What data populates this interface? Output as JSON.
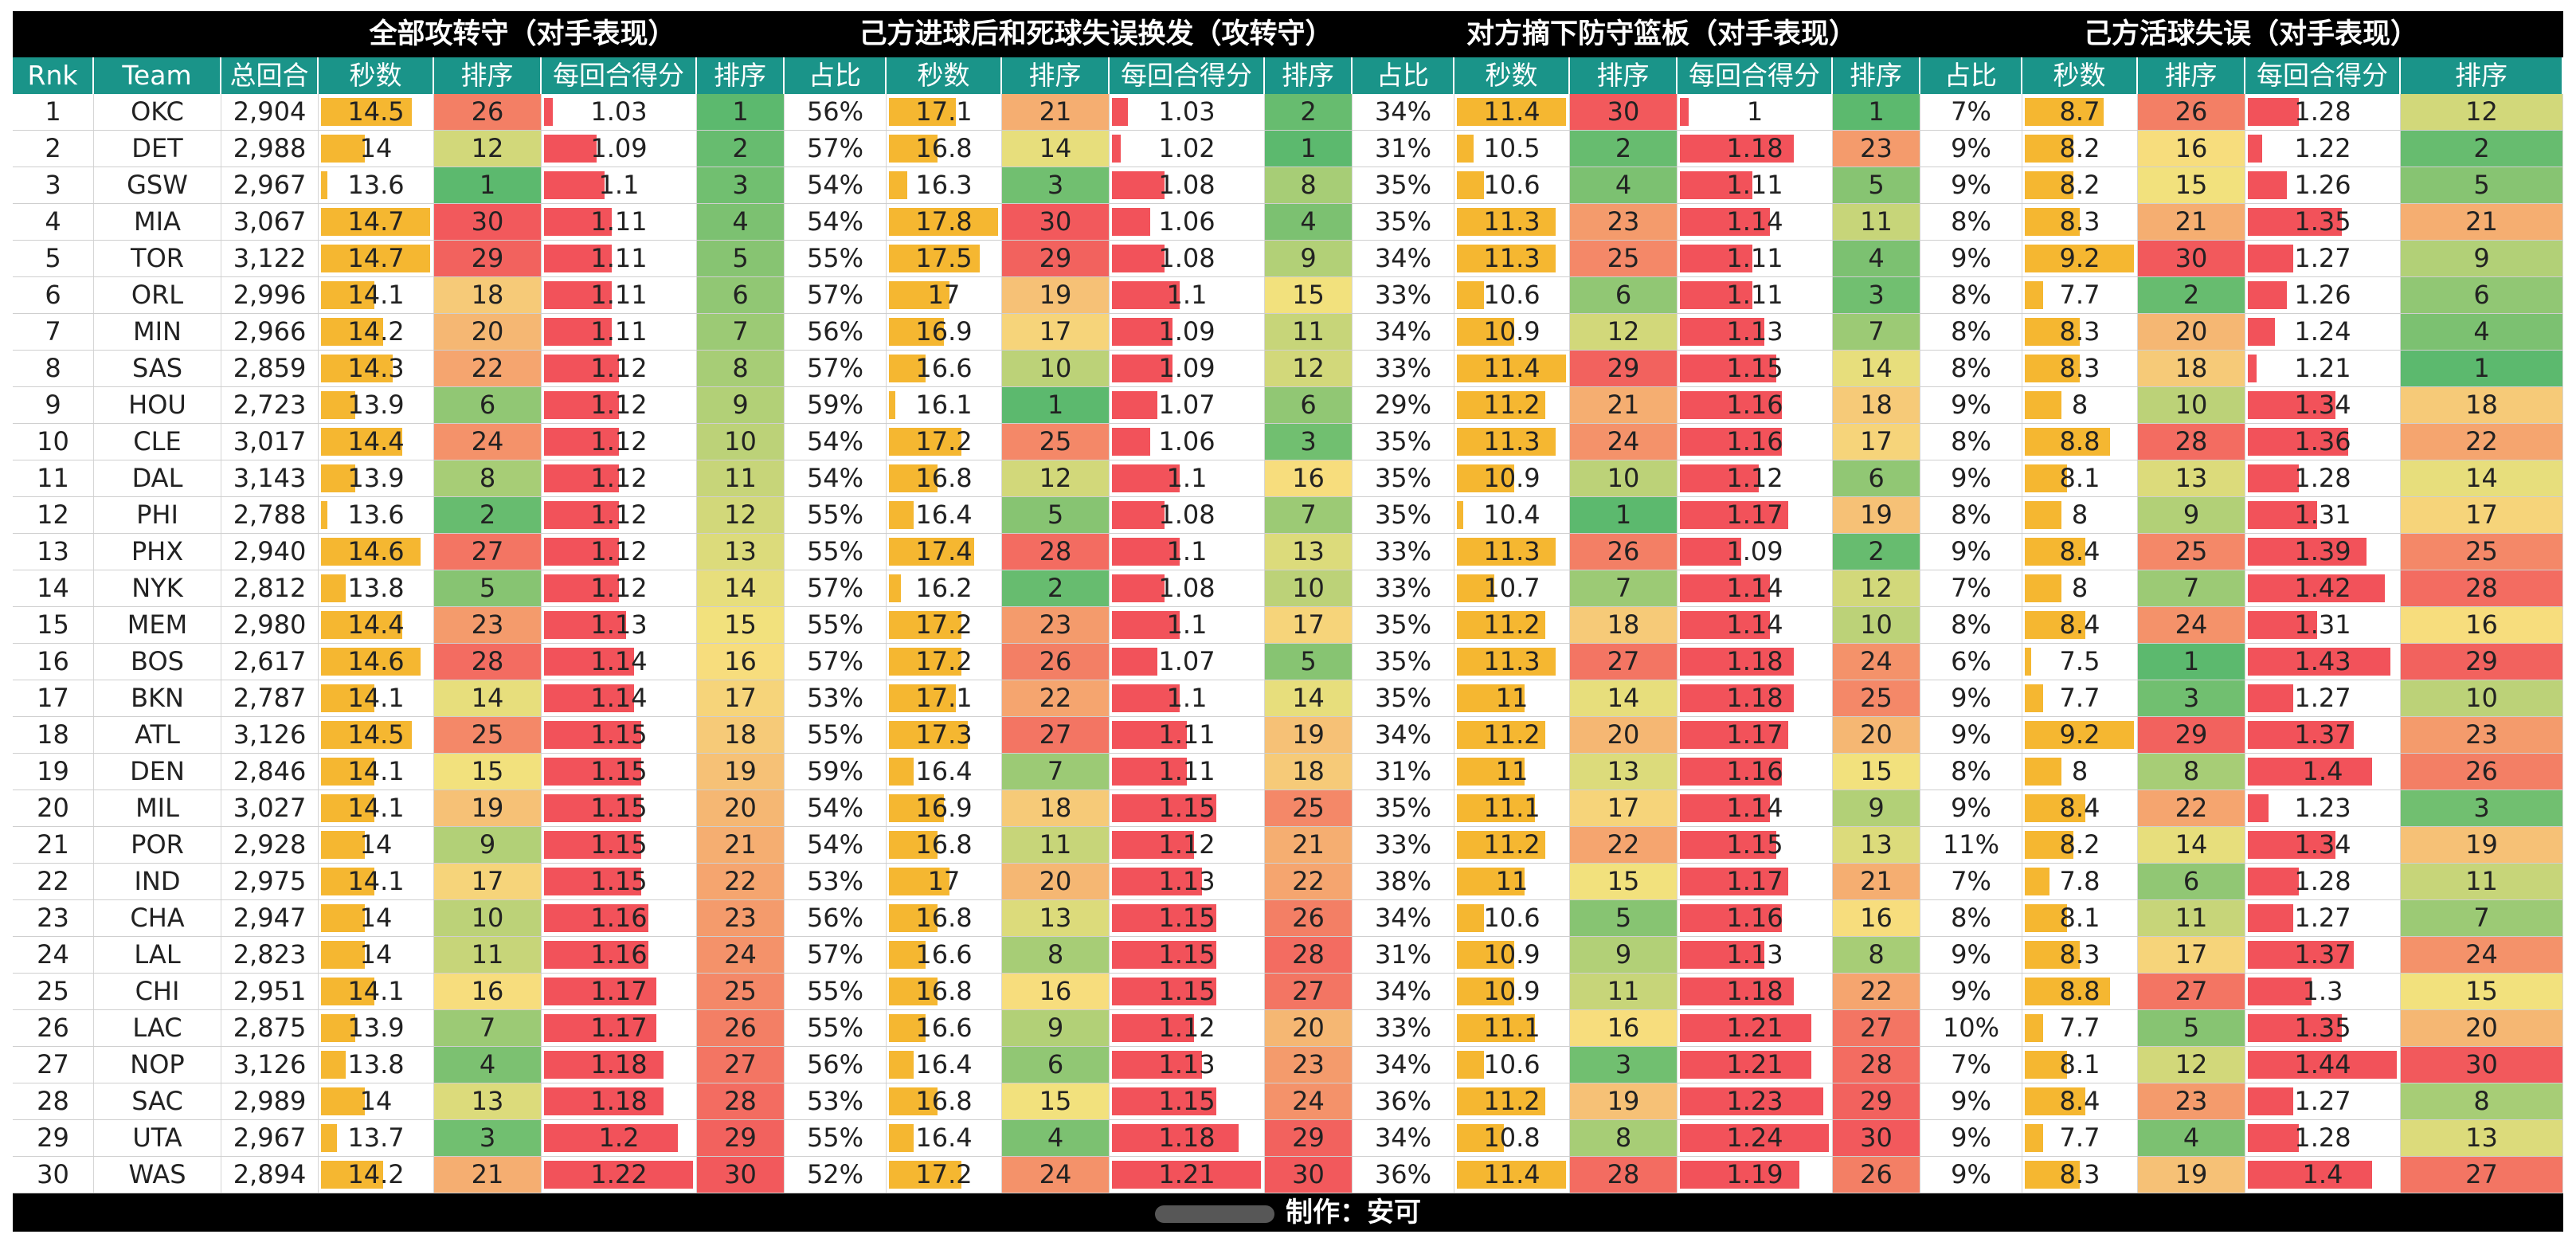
{
  "chart_data": {
    "type": "table",
    "title": "",
    "groups": [
      {
        "key": "g1",
        "label": "全部攻转守（对手表现）"
      },
      {
        "key": "g2",
        "label": "己方进球后和死球失误换发（攻转守）"
      },
      {
        "key": "g3",
        "label": "对方摘下防守篮板（对手表现）"
      },
      {
        "key": "g4",
        "label": "己方活球失误（对手表现）"
      }
    ],
    "base_headers": [
      "Rnk",
      "Team",
      "总回合"
    ],
    "g1_headers": [
      "秒数",
      "排序",
      "每回合得分",
      "排序"
    ],
    "sub_headers": [
      "占比",
      "秒数",
      "排序",
      "每回合得分",
      "排序"
    ],
    "seconds_axis": [
      13.0,
      18.5
    ],
    "ppp_axis": [
      1.0,
      1.45
    ],
    "rows": [
      {
        "rnk": "1",
        "team": "OKC",
        "poss": "2,904",
        "g1": [
          "14.5",
          "26",
          "1.03",
          "1"
        ],
        "g2": [
          "56%",
          "17.1",
          "21",
          "1.03",
          "2"
        ],
        "g3": [
          "34%",
          "11.4",
          "30",
          "1",
          "1"
        ],
        "g4": [
          "7%",
          "8.7",
          "26",
          "1.28",
          "12"
        ]
      },
      {
        "rnk": "2",
        "team": "DET",
        "poss": "2,988",
        "g1": [
          "14",
          "12",
          "1.09",
          "2"
        ],
        "g2": [
          "57%",
          "16.8",
          "14",
          "1.02",
          "1"
        ],
        "g3": [
          "31%",
          "10.5",
          "2",
          "1.18",
          "23"
        ],
        "g4": [
          "9%",
          "8.2",
          "16",
          "1.22",
          "2"
        ]
      },
      {
        "rnk": "3",
        "team": "GSW",
        "poss": "2,967",
        "g1": [
          "13.6",
          "1",
          "1.1",
          "3"
        ],
        "g2": [
          "54%",
          "16.3",
          "3",
          "1.08",
          "8"
        ],
        "g3": [
          "35%",
          "10.6",
          "4",
          "1.11",
          "5"
        ],
        "g4": [
          "9%",
          "8.2",
          "15",
          "1.26",
          "5"
        ]
      },
      {
        "rnk": "4",
        "team": "MIA",
        "poss": "3,067",
        "g1": [
          "14.7",
          "30",
          "1.11",
          "4"
        ],
        "g2": [
          "54%",
          "17.8",
          "30",
          "1.06",
          "4"
        ],
        "g3": [
          "35%",
          "11.3",
          "23",
          "1.14",
          "11"
        ],
        "g4": [
          "8%",
          "8.3",
          "21",
          "1.35",
          "21"
        ]
      },
      {
        "rnk": "5",
        "team": "TOR",
        "poss": "3,122",
        "g1": [
          "14.7",
          "29",
          "1.11",
          "5"
        ],
        "g2": [
          "55%",
          "17.5",
          "29",
          "1.08",
          "9"
        ],
        "g3": [
          "34%",
          "11.3",
          "25",
          "1.11",
          "4"
        ],
        "g4": [
          "9%",
          "9.2",
          "30",
          "1.27",
          "9"
        ]
      },
      {
        "rnk": "6",
        "team": "ORL",
        "poss": "2,996",
        "g1": [
          "14.1",
          "18",
          "1.11",
          "6"
        ],
        "g2": [
          "57%",
          "17",
          "19",
          "1.1",
          "15"
        ],
        "g3": [
          "33%",
          "10.6",
          "6",
          "1.11",
          "3"
        ],
        "g4": [
          "8%",
          "7.7",
          "2",
          "1.26",
          "6"
        ]
      },
      {
        "rnk": "7",
        "team": "MIN",
        "poss": "2,966",
        "g1": [
          "14.2",
          "20",
          "1.11",
          "7"
        ],
        "g2": [
          "56%",
          "16.9",
          "17",
          "1.09",
          "11"
        ],
        "g3": [
          "34%",
          "10.9",
          "12",
          "1.13",
          "7"
        ],
        "g4": [
          "8%",
          "8.3",
          "20",
          "1.24",
          "4"
        ]
      },
      {
        "rnk": "8",
        "team": "SAS",
        "poss": "2,859",
        "g1": [
          "14.3",
          "22",
          "1.12",
          "8"
        ],
        "g2": [
          "57%",
          "16.6",
          "10",
          "1.09",
          "12"
        ],
        "g3": [
          "33%",
          "11.4",
          "29",
          "1.15",
          "14"
        ],
        "g4": [
          "8%",
          "8.3",
          "18",
          "1.21",
          "1"
        ]
      },
      {
        "rnk": "9",
        "team": "HOU",
        "poss": "2,723",
        "g1": [
          "13.9",
          "6",
          "1.12",
          "9"
        ],
        "g2": [
          "59%",
          "16.1",
          "1",
          "1.07",
          "6"
        ],
        "g3": [
          "29%",
          "11.2",
          "21",
          "1.16",
          "18"
        ],
        "g4": [
          "9%",
          "8",
          "10",
          "1.34",
          "18"
        ]
      },
      {
        "rnk": "10",
        "team": "CLE",
        "poss": "3,017",
        "g1": [
          "14.4",
          "24",
          "1.12",
          "10"
        ],
        "g2": [
          "54%",
          "17.2",
          "25",
          "1.06",
          "3"
        ],
        "g3": [
          "35%",
          "11.3",
          "24",
          "1.16",
          "17"
        ],
        "g4": [
          "8%",
          "8.8",
          "28",
          "1.36",
          "22"
        ]
      },
      {
        "rnk": "11",
        "team": "DAL",
        "poss": "3,143",
        "g1": [
          "13.9",
          "8",
          "1.12",
          "11"
        ],
        "g2": [
          "54%",
          "16.8",
          "12",
          "1.1",
          "16"
        ],
        "g3": [
          "35%",
          "10.9",
          "10",
          "1.12",
          "6"
        ],
        "g4": [
          "9%",
          "8.1",
          "13",
          "1.28",
          "14"
        ]
      },
      {
        "rnk": "12",
        "team": "PHI",
        "poss": "2,788",
        "g1": [
          "13.6",
          "2",
          "1.12",
          "12"
        ],
        "g2": [
          "55%",
          "16.4",
          "5",
          "1.08",
          "7"
        ],
        "g3": [
          "35%",
          "10.4",
          "1",
          "1.17",
          "19"
        ],
        "g4": [
          "8%",
          "8",
          "9",
          "1.31",
          "17"
        ]
      },
      {
        "rnk": "13",
        "team": "PHX",
        "poss": "2,940",
        "g1": [
          "14.6",
          "27",
          "1.12",
          "13"
        ],
        "g2": [
          "55%",
          "17.4",
          "28",
          "1.1",
          "13"
        ],
        "g3": [
          "33%",
          "11.3",
          "26",
          "1.09",
          "2"
        ],
        "g4": [
          "9%",
          "8.4",
          "25",
          "1.39",
          "25"
        ]
      },
      {
        "rnk": "14",
        "team": "NYK",
        "poss": "2,812",
        "g1": [
          "13.8",
          "5",
          "1.12",
          "14"
        ],
        "g2": [
          "57%",
          "16.2",
          "2",
          "1.08",
          "10"
        ],
        "g3": [
          "33%",
          "10.7",
          "7",
          "1.14",
          "12"
        ],
        "g4": [
          "7%",
          "8",
          "7",
          "1.42",
          "28"
        ]
      },
      {
        "rnk": "15",
        "team": "MEM",
        "poss": "2,980",
        "g1": [
          "14.4",
          "23",
          "1.13",
          "15"
        ],
        "g2": [
          "55%",
          "17.2",
          "23",
          "1.1",
          "17"
        ],
        "g3": [
          "35%",
          "11.2",
          "18",
          "1.14",
          "10"
        ],
        "g4": [
          "8%",
          "8.4",
          "24",
          "1.31",
          "16"
        ]
      },
      {
        "rnk": "16",
        "team": "BOS",
        "poss": "2,617",
        "g1": [
          "14.6",
          "28",
          "1.14",
          "16"
        ],
        "g2": [
          "57%",
          "17.2",
          "26",
          "1.07",
          "5"
        ],
        "g3": [
          "35%",
          "11.3",
          "27",
          "1.18",
          "24"
        ],
        "g4": [
          "6%",
          "7.5",
          "1",
          "1.43",
          "29"
        ]
      },
      {
        "rnk": "17",
        "team": "BKN",
        "poss": "2,787",
        "g1": [
          "14.1",
          "14",
          "1.14",
          "17"
        ],
        "g2": [
          "53%",
          "17.1",
          "22",
          "1.1",
          "14"
        ],
        "g3": [
          "35%",
          "11",
          "14",
          "1.18",
          "25"
        ],
        "g4": [
          "9%",
          "7.7",
          "3",
          "1.27",
          "10"
        ]
      },
      {
        "rnk": "18",
        "team": "ATL",
        "poss": "3,126",
        "g1": [
          "14.5",
          "25",
          "1.15",
          "18"
        ],
        "g2": [
          "55%",
          "17.3",
          "27",
          "1.11",
          "19"
        ],
        "g3": [
          "34%",
          "11.2",
          "20",
          "1.17",
          "20"
        ],
        "g4": [
          "9%",
          "9.2",
          "29",
          "1.37",
          "23"
        ]
      },
      {
        "rnk": "19",
        "team": "DEN",
        "poss": "2,846",
        "g1": [
          "14.1",
          "15",
          "1.15",
          "19"
        ],
        "g2": [
          "59%",
          "16.4",
          "7",
          "1.11",
          "18"
        ],
        "g3": [
          "31%",
          "11",
          "13",
          "1.16",
          "15"
        ],
        "g4": [
          "8%",
          "8",
          "8",
          "1.4",
          "26"
        ]
      },
      {
        "rnk": "20",
        "team": "MIL",
        "poss": "3,027",
        "g1": [
          "14.1",
          "19",
          "1.15",
          "20"
        ],
        "g2": [
          "54%",
          "16.9",
          "18",
          "1.15",
          "25"
        ],
        "g3": [
          "35%",
          "11.1",
          "17",
          "1.14",
          "9"
        ],
        "g4": [
          "9%",
          "8.4",
          "22",
          "1.23",
          "3"
        ]
      },
      {
        "rnk": "21",
        "team": "POR",
        "poss": "2,928",
        "g1": [
          "14",
          "9",
          "1.15",
          "21"
        ],
        "g2": [
          "54%",
          "16.8",
          "11",
          "1.12",
          "21"
        ],
        "g3": [
          "33%",
          "11.2",
          "22",
          "1.15",
          "13"
        ],
        "g4": [
          "11%",
          "8.2",
          "14",
          "1.34",
          "19"
        ]
      },
      {
        "rnk": "22",
        "team": "IND",
        "poss": "2,975",
        "g1": [
          "14.1",
          "17",
          "1.15",
          "22"
        ],
        "g2": [
          "53%",
          "17",
          "20",
          "1.13",
          "22"
        ],
        "g3": [
          "38%",
          "11",
          "15",
          "1.17",
          "21"
        ],
        "g4": [
          "7%",
          "7.8",
          "6",
          "1.28",
          "11"
        ]
      },
      {
        "rnk": "23",
        "team": "CHA",
        "poss": "2,947",
        "g1": [
          "14",
          "10",
          "1.16",
          "23"
        ],
        "g2": [
          "56%",
          "16.8",
          "13",
          "1.15",
          "26"
        ],
        "g3": [
          "34%",
          "10.6",
          "5",
          "1.16",
          "16"
        ],
        "g4": [
          "8%",
          "8.1",
          "11",
          "1.27",
          "7"
        ]
      },
      {
        "rnk": "24",
        "team": "LAL",
        "poss": "2,823",
        "g1": [
          "14",
          "11",
          "1.16",
          "24"
        ],
        "g2": [
          "57%",
          "16.6",
          "8",
          "1.15",
          "28"
        ],
        "g3": [
          "31%",
          "10.9",
          "9",
          "1.13",
          "8"
        ],
        "g4": [
          "9%",
          "8.3",
          "17",
          "1.37",
          "24"
        ]
      },
      {
        "rnk": "25",
        "team": "CHI",
        "poss": "2,951",
        "g1": [
          "14.1",
          "16",
          "1.17",
          "25"
        ],
        "g2": [
          "55%",
          "16.8",
          "16",
          "1.15",
          "27"
        ],
        "g3": [
          "34%",
          "10.9",
          "11",
          "1.18",
          "22"
        ],
        "g4": [
          "9%",
          "8.8",
          "27",
          "1.3",
          "15"
        ]
      },
      {
        "rnk": "26",
        "team": "LAC",
        "poss": "2,875",
        "g1": [
          "13.9",
          "7",
          "1.17",
          "26"
        ],
        "g2": [
          "55%",
          "16.6",
          "9",
          "1.12",
          "20"
        ],
        "g3": [
          "33%",
          "11.1",
          "16",
          "1.21",
          "27"
        ],
        "g4": [
          "10%",
          "7.7",
          "5",
          "1.35",
          "20"
        ]
      },
      {
        "rnk": "27",
        "team": "NOP",
        "poss": "3,126",
        "g1": [
          "13.8",
          "4",
          "1.18",
          "27"
        ],
        "g2": [
          "56%",
          "16.4",
          "6",
          "1.13",
          "23"
        ],
        "g3": [
          "34%",
          "10.6",
          "3",
          "1.21",
          "28"
        ],
        "g4": [
          "7%",
          "8.1",
          "12",
          "1.44",
          "30"
        ]
      },
      {
        "rnk": "28",
        "team": "SAC",
        "poss": "2,989",
        "g1": [
          "14",
          "13",
          "1.18",
          "28"
        ],
        "g2": [
          "53%",
          "16.8",
          "15",
          "1.15",
          "24"
        ],
        "g3": [
          "36%",
          "11.2",
          "19",
          "1.23",
          "29"
        ],
        "g4": [
          "9%",
          "8.4",
          "23",
          "1.27",
          "8"
        ]
      },
      {
        "rnk": "29",
        "team": "UTA",
        "poss": "2,967",
        "g1": [
          "13.7",
          "3",
          "1.2",
          "29"
        ],
        "g2": [
          "55%",
          "16.4",
          "4",
          "1.18",
          "29"
        ],
        "g3": [
          "34%",
          "10.8",
          "8",
          "1.24",
          "30"
        ],
        "g4": [
          "9%",
          "7.7",
          "4",
          "1.28",
          "13"
        ]
      },
      {
        "rnk": "30",
        "team": "WAS",
        "poss": "2,894",
        "g1": [
          "14.2",
          "21",
          "1.22",
          "30"
        ],
        "g2": [
          "52%",
          "17.2",
          "24",
          "1.21",
          "30"
        ],
        "g3": [
          "36%",
          "11.4",
          "28",
          "1.19",
          "26"
        ],
        "g4": [
          "9%",
          "8.3",
          "19",
          "1.4",
          "27"
        ]
      }
    ]
  },
  "footer": {
    "credit": "制作：安可"
  },
  "colors": {
    "bar_seconds": "#f5b731",
    "bar_ppp": "#f2525a",
    "rank_best": "#5cb96e",
    "rank_mid": "#f7e27e",
    "rank_worst": "#f2595c",
    "header_bg": "#1a9489",
    "title_bg": "#000000"
  }
}
